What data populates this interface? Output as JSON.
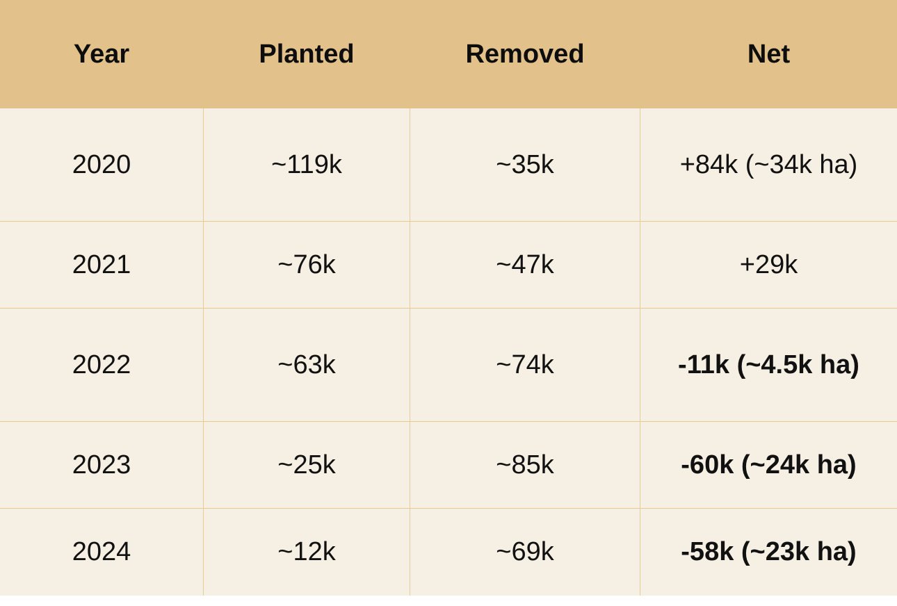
{
  "chart_data": {
    "type": "table",
    "columns": [
      "Year",
      "Planted",
      "Removed",
      "Net"
    ],
    "rows": [
      {
        "year": "2020",
        "planted": "~119k",
        "removed": "~35k",
        "net": "+84k (~34k ha)",
        "net_bold": false
      },
      {
        "year": "2021",
        "planted": "~76k",
        "removed": "~47k",
        "net": "+29k",
        "net_bold": false
      },
      {
        "year": "2022",
        "planted": "~63k",
        "removed": "~74k",
        "net": "-11k (~4.5k ha)",
        "net_bold": true
      },
      {
        "year": "2023",
        "planted": "~25k",
        "removed": "~85k",
        "net": "-60k (~24k ha)",
        "net_bold": true
      },
      {
        "year": "2024",
        "planted": "~12k",
        "removed": "~69k",
        "net": "-58k (~23k ha)",
        "net_bold": true
      }
    ]
  },
  "colors": {
    "header_bg": "#e2c18a",
    "body_bg": "#f6efe3",
    "grid_line": "#e6c98f",
    "text": "#111111"
  }
}
